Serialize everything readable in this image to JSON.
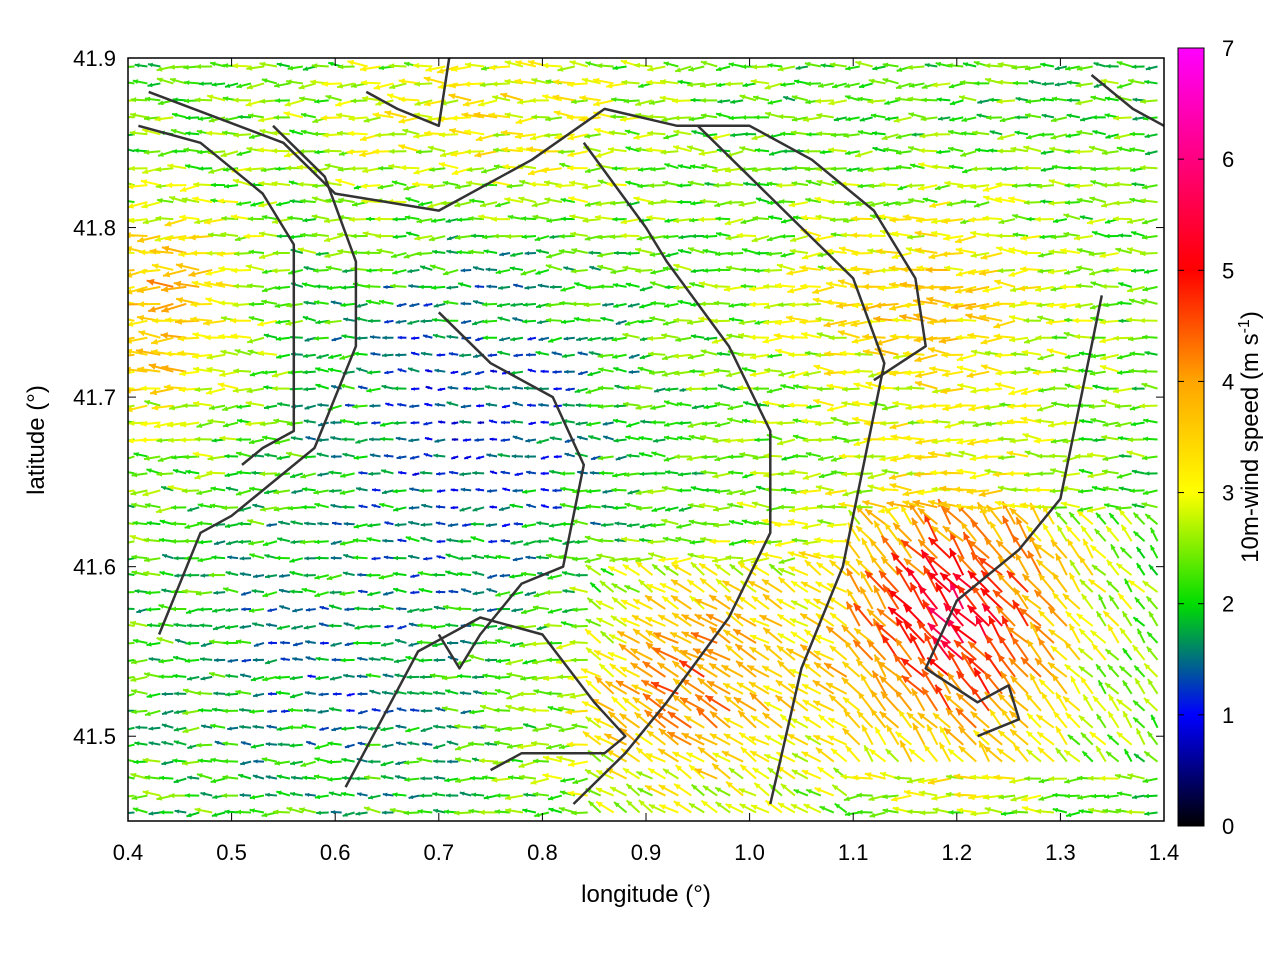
{
  "chart_data": {
    "type": "vector-field",
    "xlabel": "longitude (°)",
    "ylabel": "latitude (°)",
    "colorbar_label": "10m-wind speed (m s",
    "colorbar_label_sup": "-1",
    "colorbar_label_end": ")",
    "xlim": [
      0.4,
      1.4
    ],
    "ylim": [
      41.45,
      41.9
    ],
    "x_ticks": [
      "0.4",
      "0.5",
      "0.6",
      "0.7",
      "0.8",
      "0.9",
      "1.0",
      "1.1",
      "1.2",
      "1.3",
      "1.4"
    ],
    "y_ticks": [
      "41.5",
      "41.6",
      "41.7",
      "41.8",
      "41.9"
    ],
    "x_tick_values": [
      0.4,
      0.5,
      0.6,
      0.7,
      0.8,
      0.9,
      1.0,
      1.1,
      1.2,
      1.3,
      1.4
    ],
    "y_tick_values": [
      41.5,
      41.6,
      41.7,
      41.8,
      41.9
    ],
    "colorbar_range": [
      0,
      7
    ],
    "colorbar_ticks": [
      "0",
      "1",
      "2",
      "3",
      "4",
      "5",
      "6",
      "7"
    ],
    "colormap": [
      "#000000",
      "#0000ff",
      "#00dd00",
      "#ffff00",
      "#ffa500",
      "#ff0000",
      "#ff00ff"
    ],
    "grid": false,
    "legend": "colorbar-right",
    "wind_field": {
      "grid_step_deg": [
        0.0125,
        0.01
      ],
      "prevailing_direction": "westward",
      "speed_zones": [
        {
          "region": "southeast",
          "lon": [
            1.1,
            1.3
          ],
          "lat": [
            41.5,
            41.63
          ],
          "speed": 5.2
        },
        {
          "region": "south-central",
          "lon": [
            0.85,
            1.05
          ],
          "lat": [
            41.48,
            41.58
          ],
          "speed": 4.2
        },
        {
          "region": "northwest",
          "lon": [
            0.4,
            0.5
          ],
          "lat": [
            41.7,
            41.8
          ],
          "speed": 3.8
        },
        {
          "region": "east-central",
          "lon": [
            1.05,
            1.3
          ],
          "lat": [
            41.7,
            41.8
          ],
          "speed": 3.5
        },
        {
          "region": "north-central",
          "lon": [
            0.6,
            0.9
          ],
          "lat": [
            41.82,
            41.9
          ],
          "speed": 3.2
        },
        {
          "region": "central",
          "lon": [
            0.62,
            0.85
          ],
          "lat": [
            41.58,
            41.77
          ],
          "speed": 1.2
        },
        {
          "region": "southwest",
          "lon": [
            0.5,
            0.7
          ],
          "lat": [
            41.48,
            41.6
          ],
          "speed": 1.5
        }
      ]
    },
    "topographic_contours": [
      [
        [
          0.42,
          41.88
        ],
        [
          0.55,
          41.85
        ],
        [
          0.6,
          41.82
        ],
        [
          0.7,
          41.81
        ],
        [
          0.79,
          41.84
        ],
        [
          0.86,
          41.87
        ],
        [
          0.93,
          41.86
        ],
        [
          1.0,
          41.86
        ],
        [
          1.06,
          41.84
        ],
        [
          1.12,
          41.81
        ],
        [
          1.16,
          41.77
        ],
        [
          1.17,
          41.73
        ],
        [
          1.12,
          41.71
        ]
      ],
      [
        [
          0.41,
          41.86
        ],
        [
          0.47,
          41.85
        ],
        [
          0.53,
          41.82
        ],
        [
          0.56,
          41.79
        ],
        [
          0.56,
          41.73
        ],
        [
          0.56,
          41.68
        ],
        [
          0.53,
          41.67
        ],
        [
          0.51,
          41.66
        ]
      ],
      [
        [
          0.54,
          41.86
        ],
        [
          0.59,
          41.83
        ],
        [
          0.62,
          41.78
        ],
        [
          0.62,
          41.73
        ],
        [
          0.58,
          41.67
        ],
        [
          0.5,
          41.63
        ],
        [
          0.47,
          41.62
        ],
        [
          0.43,
          41.56
        ]
      ],
      [
        [
          0.7,
          41.75
        ],
        [
          0.75,
          41.72
        ],
        [
          0.81,
          41.7
        ],
        [
          0.84,
          41.66
        ],
        [
          0.82,
          41.6
        ],
        [
          0.78,
          41.59
        ],
        [
          0.74,
          41.56
        ],
        [
          0.72,
          41.54
        ],
        [
          0.7,
          41.56
        ]
      ],
      [
        [
          0.84,
          41.85
        ],
        [
          0.9,
          41.8
        ],
        [
          0.92,
          41.78
        ],
        [
          0.98,
          41.73
        ],
        [
          1.02,
          41.68
        ],
        [
          1.02,
          41.62
        ],
        [
          0.98,
          41.57
        ],
        [
          0.92,
          41.52
        ],
        [
          0.88,
          41.49
        ],
        [
          0.83,
          41.46
        ]
      ],
      [
        [
          0.95,
          41.86
        ],
        [
          1.0,
          41.83
        ],
        [
          1.05,
          41.8
        ],
        [
          1.1,
          41.77
        ],
        [
          1.13,
          41.72
        ],
        [
          1.11,
          41.66
        ],
        [
          1.09,
          41.6
        ],
        [
          1.05,
          41.54
        ],
        [
          1.02,
          41.46
        ]
      ],
      [
        [
          1.34,
          41.76
        ],
        [
          1.32,
          41.7
        ],
        [
          1.3,
          41.64
        ],
        [
          1.26,
          41.61
        ],
        [
          1.2,
          41.58
        ],
        [
          1.17,
          41.54
        ],
        [
          1.22,
          41.52
        ],
        [
          1.25,
          41.53
        ],
        [
          1.26,
          41.51
        ],
        [
          1.22,
          41.5
        ]
      ],
      [
        [
          0.61,
          41.47
        ],
        [
          0.68,
          41.55
        ],
        [
          0.74,
          41.57
        ],
        [
          0.8,
          41.56
        ],
        [
          0.85,
          41.52
        ],
        [
          0.88,
          41.5
        ],
        [
          0.86,
          41.49
        ],
        [
          0.78,
          41.49
        ],
        [
          0.75,
          41.48
        ]
      ],
      [
        [
          1.33,
          41.89
        ],
        [
          1.37,
          41.87
        ],
        [
          1.4,
          41.86
        ]
      ],
      [
        [
          0.63,
          41.88
        ],
        [
          0.66,
          41.87
        ],
        [
          0.7,
          41.86
        ],
        [
          0.71,
          41.9
        ]
      ]
    ]
  }
}
